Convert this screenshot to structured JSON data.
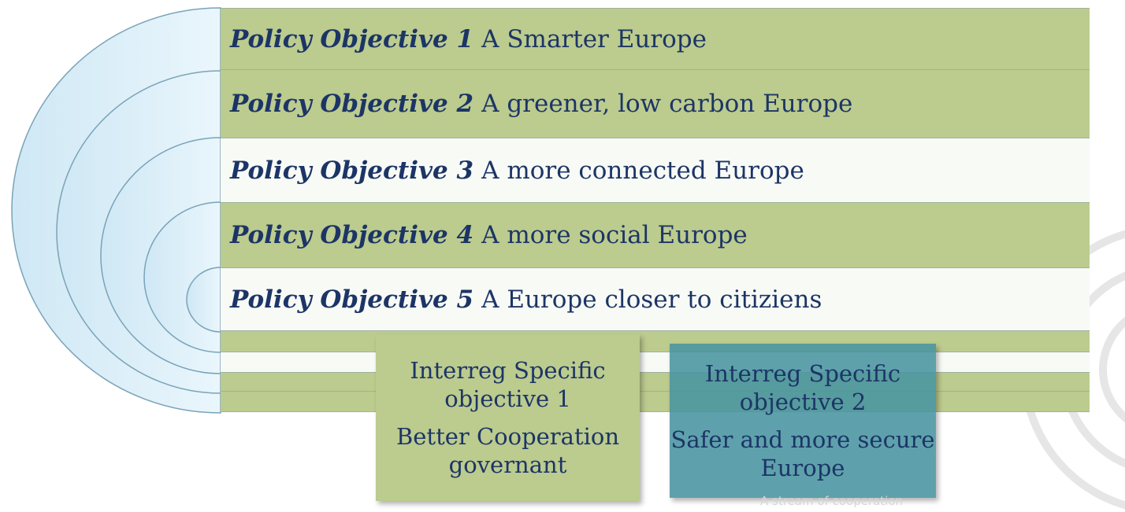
{
  "objectives": [
    {
      "label": "Policy Objective 1",
      "text": "A Smarter Europe"
    },
    {
      "label": "Policy Objective 2",
      "text": "A greener, low carbon Europe"
    },
    {
      "label": "Policy Objective 3",
      "text": "A more connected Europe"
    },
    {
      "label": "Policy Objective 4",
      "text": "A more social Europe"
    },
    {
      "label": "Policy Objective 5",
      "text": "A Europe closer to citiziens"
    }
  ],
  "boxes": [
    {
      "title": "Interreg Specific objective 1",
      "text": "Better Cooperation governant"
    },
    {
      "title": "Interreg Specific objective 2",
      "text": "Safer and more secure Europe"
    }
  ],
  "footer": "A stream of cooperation"
}
